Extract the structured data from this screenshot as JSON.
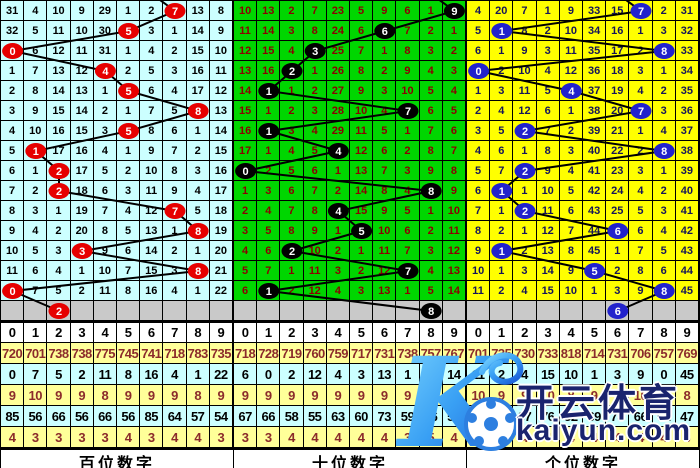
{
  "colors": {
    "grid_line": "#000000",
    "gray_row": "#C9C9C9",
    "stats_yellow": "#FFFF99",
    "stats_cyan": "#CCFFFF",
    "stats_warm_text": "#8B2B2B",
    "watermark_navy": "#1A246E",
    "watermark_blue": "#2E86F0"
  },
  "watermark": {
    "big_letter": "K",
    "cn_text": "开云体育",
    "url_text": "kaiyun.com"
  },
  "chart_data": [
    {
      "type": "line",
      "title": "百位数字",
      "x": [
        1,
        2,
        3,
        4,
        5,
        6,
        7,
        8,
        9,
        10,
        11,
        12,
        13,
        14,
        15,
        16
      ],
      "values": [
        7,
        5,
        0,
        4,
        5,
        8,
        5,
        1,
        2,
        2,
        7,
        8,
        3,
        8,
        0,
        2
      ],
      "ylim": [
        0,
        9
      ],
      "legend_position": "none"
    },
    {
      "type": "line",
      "title": "十位数字",
      "x": [
        1,
        2,
        3,
        4,
        5,
        6,
        7,
        8,
        9,
        10,
        11,
        12,
        13,
        14,
        15,
        16
      ],
      "values": [
        9,
        6,
        3,
        2,
        1,
        7,
        1,
        4,
        0,
        8,
        4,
        5,
        2,
        7,
        1,
        8
      ],
      "ylim": [
        0,
        9
      ],
      "legend_position": "none"
    },
    {
      "type": "line",
      "title": "个位数字",
      "x": [
        1,
        2,
        3,
        4,
        5,
        6,
        7,
        8,
        9,
        10,
        11,
        12,
        13,
        14,
        15,
        16
      ],
      "values": [
        7,
        1,
        8,
        0,
        4,
        7,
        2,
        8,
        2,
        1,
        2,
        6,
        1,
        5,
        8,
        6
      ],
      "ylim": [
        0,
        9
      ],
      "legend_position": "none"
    }
  ],
  "panels": [
    {
      "name": "hundreds",
      "label": "百位数字",
      "cell_bg": "#CCFFFF",
      "num_color": "#000000",
      "circle_color": "#E60000",
      "grid": [
        [
          "31",
          "4",
          "10",
          "9",
          "29",
          "1",
          "2",
          "7",
          "13",
          "8"
        ],
        [
          "32",
          "5",
          "11",
          "10",
          "30",
          "5",
          "3",
          "1",
          "14",
          "9"
        ],
        [
          "0",
          "6",
          "12",
          "11",
          "31",
          "1",
          "4",
          "2",
          "15",
          "10"
        ],
        [
          "1",
          "7",
          "13",
          "12",
          "4",
          "2",
          "5",
          "3",
          "16",
          "11"
        ],
        [
          "2",
          "8",
          "14",
          "13",
          "1",
          "5",
          "6",
          "4",
          "17",
          "12"
        ],
        [
          "3",
          "9",
          "15",
          "14",
          "2",
          "1",
          "7",
          "5",
          "8",
          "13"
        ],
        [
          "4",
          "10",
          "16",
          "15",
          "3",
          "5",
          "8",
          "6",
          "1",
          "14"
        ],
        [
          "5",
          "1",
          "17",
          "16",
          "4",
          "1",
          "9",
          "7",
          "2",
          "15"
        ],
        [
          "6",
          "1",
          "2",
          "17",
          "5",
          "2",
          "10",
          "8",
          "3",
          "16"
        ],
        [
          "7",
          "2",
          "2",
          "18",
          "6",
          "3",
          "11",
          "9",
          "4",
          "17"
        ],
        [
          "8",
          "3",
          "1",
          "19",
          "7",
          "4",
          "12",
          "7",
          "5",
          "18"
        ],
        [
          "9",
          "4",
          "2",
          "20",
          "8",
          "5",
          "13",
          "1",
          "8",
          "19"
        ],
        [
          "10",
          "5",
          "3",
          "3",
          "9",
          "6",
          "14",
          "2",
          "1",
          "20"
        ],
        [
          "11",
          "6",
          "4",
          "1",
          "10",
          "7",
          "15",
          "3",
          "8",
          "21"
        ],
        [
          "0",
          "7",
          "5",
          "2",
          "11",
          "8",
          "16",
          "4",
          "1",
          "22"
        ]
      ],
      "marks": [
        7,
        5,
        0,
        4,
        5,
        8,
        5,
        1,
        2,
        2,
        7,
        8,
        3,
        8,
        0
      ],
      "gray_mark": {
        "col": 2,
        "val": "2"
      },
      "headers": [
        "0",
        "1",
        "2",
        "3",
        "4",
        "5",
        "6",
        "7",
        "8",
        "9"
      ],
      "stats": [
        [
          "720",
          "701",
          "738",
          "738",
          "775",
          "745",
          "741",
          "718",
          "783",
          "735"
        ],
        [
          "0",
          "7",
          "5",
          "2",
          "11",
          "8",
          "16",
          "4",
          "1",
          "22"
        ],
        [
          "9",
          "10",
          "9",
          "9",
          "8",
          "9",
          "9",
          "9",
          "8",
          "9"
        ],
        [
          "85",
          "56",
          "66",
          "56",
          "66",
          "56",
          "85",
          "64",
          "57",
          "54"
        ],
        [
          "4",
          "3",
          "3",
          "3",
          "3",
          "4",
          "3",
          "4",
          "4",
          "3"
        ]
      ]
    },
    {
      "name": "tens",
      "label": "十位数字",
      "cell_bg": "#00D600",
      "num_color": "#8B0000",
      "circle_color": "#000000",
      "grid": [
        [
          "10",
          "13",
          "2",
          "7",
          "23",
          "5",
          "9",
          "6",
          "1",
          "9"
        ],
        [
          "11",
          "14",
          "3",
          "8",
          "24",
          "6",
          "6",
          "7",
          "2",
          "1"
        ],
        [
          "12",
          "15",
          "4",
          "3",
          "25",
          "7",
          "1",
          "8",
          "3",
          "2"
        ],
        [
          "13",
          "16",
          "2",
          "1",
          "26",
          "8",
          "2",
          "9",
          "4",
          "3"
        ],
        [
          "14",
          "1",
          "1",
          "2",
          "27",
          "9",
          "3",
          "10",
          "5",
          "4"
        ],
        [
          "15",
          "1",
          "2",
          "3",
          "28",
          "10",
          "4",
          "7",
          "6",
          "5"
        ],
        [
          "16",
          "1",
          "3",
          "4",
          "29",
          "11",
          "5",
          "1",
          "7",
          "6"
        ],
        [
          "17",
          "1",
          "4",
          "5",
          "4",
          "12",
          "6",
          "2",
          "8",
          "7"
        ],
        [
          "0",
          "2",
          "5",
          "6",
          "1",
          "13",
          "7",
          "3",
          "9",
          "8"
        ],
        [
          "1",
          "3",
          "6",
          "7",
          "2",
          "14",
          "8",
          "4",
          "8",
          "9"
        ],
        [
          "2",
          "4",
          "7",
          "8",
          "4",
          "15",
          "9",
          "5",
          "1",
          "10"
        ],
        [
          "3",
          "5",
          "8",
          "9",
          "1",
          "5",
          "10",
          "6",
          "2",
          "11"
        ],
        [
          "4",
          "6",
          "2",
          "10",
          "2",
          "1",
          "11",
          "7",
          "3",
          "12"
        ],
        [
          "5",
          "7",
          "1",
          "11",
          "3",
          "2",
          "12",
          "7",
          "4",
          "13"
        ],
        [
          "6",
          "1",
          "2",
          "12",
          "4",
          "3",
          "13",
          "1",
          "5",
          "14"
        ]
      ],
      "marks": [
        9,
        6,
        3,
        2,
        1,
        7,
        1,
        4,
        0,
        8,
        4,
        5,
        2,
        7,
        1
      ],
      "gray_mark": {
        "col": 8,
        "val": "8"
      },
      "headers": [
        "0",
        "1",
        "2",
        "3",
        "4",
        "5",
        "6",
        "7",
        "8",
        "9"
      ],
      "stats": [
        [
          "718",
          "728",
          "719",
          "760",
          "759",
          "717",
          "731",
          "738",
          "757",
          "767"
        ],
        [
          "6",
          "0",
          "2",
          "12",
          "4",
          "3",
          "13",
          "1",
          "5",
          "14"
        ],
        [
          "9",
          "9",
          "9",
          "9",
          "9",
          "9",
          "9",
          "9",
          "9",
          "9"
        ],
        [
          "67",
          "66",
          "58",
          "55",
          "63",
          "60",
          "73",
          "59",
          "56",
          "56"
        ],
        [
          "3",
          "3",
          "4",
          "4",
          "4",
          "4",
          "4",
          "3",
          "5",
          "4"
        ]
      ]
    },
    {
      "name": "units",
      "label": "个位数字",
      "cell_bg": "#FFFF00",
      "num_color": "#14145A",
      "circle_color": "#2222CC",
      "grid": [
        [
          "4",
          "20",
          "7",
          "1",
          "9",
          "33",
          "15",
          "7",
          "2",
          "31"
        ],
        [
          "5",
          "1",
          "8",
          "2",
          "10",
          "34",
          "16",
          "1",
          "3",
          "32"
        ],
        [
          "6",
          "1",
          "9",
          "3",
          "11",
          "35",
          "17",
          "2",
          "8",
          "33"
        ],
        [
          "0",
          "2",
          "10",
          "4",
          "12",
          "36",
          "18",
          "3",
          "1",
          "34"
        ],
        [
          "1",
          "3",
          "11",
          "5",
          "4",
          "37",
          "19",
          "4",
          "2",
          "35"
        ],
        [
          "2",
          "4",
          "12",
          "6",
          "1",
          "38",
          "20",
          "7",
          "3",
          "36"
        ],
        [
          "3",
          "5",
          "2",
          "7",
          "2",
          "39",
          "21",
          "1",
          "4",
          "37"
        ],
        [
          "4",
          "6",
          "1",
          "8",
          "3",
          "40",
          "22",
          "2",
          "8",
          "38"
        ],
        [
          "5",
          "7",
          "2",
          "9",
          "4",
          "41",
          "23",
          "3",
          "1",
          "39"
        ],
        [
          "6",
          "1",
          "1",
          "10",
          "5",
          "42",
          "24",
          "4",
          "2",
          "40"
        ],
        [
          "7",
          "1",
          "2",
          "11",
          "6",
          "43",
          "25",
          "5",
          "3",
          "41"
        ],
        [
          "8",
          "2",
          "1",
          "12",
          "7",
          "44",
          "6",
          "6",
          "4",
          "42"
        ],
        [
          "9",
          "1",
          "2",
          "13",
          "8",
          "45",
          "1",
          "7",
          "5",
          "43"
        ],
        [
          "10",
          "1",
          "3",
          "14",
          "9",
          "5",
          "2",
          "8",
          "6",
          "44"
        ],
        [
          "11",
          "2",
          "4",
          "15",
          "10",
          "1",
          "3",
          "9",
          "8",
          "45"
        ]
      ],
      "marks": [
        7,
        1,
        8,
        0,
        4,
        7,
        2,
        8,
        2,
        1,
        2,
        6,
        1,
        5,
        8
      ],
      "gray_mark": {
        "col": 6,
        "val": "6"
      },
      "headers": [
        "0",
        "1",
        "2",
        "3",
        "4",
        "5",
        "6",
        "7",
        "8",
        "9"
      ],
      "stats": [
        [
          "701",
          "735",
          "730",
          "733",
          "818",
          "714",
          "731",
          "706",
          "757",
          "769"
        ],
        [
          "11",
          "2",
          "4",
          "15",
          "10",
          "1",
          "3",
          "9",
          "0",
          "45"
        ],
        [
          "10",
          "9",
          "9",
          "10",
          "8",
          "9",
          "9",
          "10",
          "9",
          "8"
        ],
        [
          "71",
          "80",
          "67",
          "76",
          "52",
          "69",
          "74",
          "66",
          "61",
          "47"
        ],
        [
          "3",
          "3",
          "4",
          "4",
          "4",
          "4",
          "4",
          "4",
          "4",
          "3"
        ]
      ]
    }
  ]
}
